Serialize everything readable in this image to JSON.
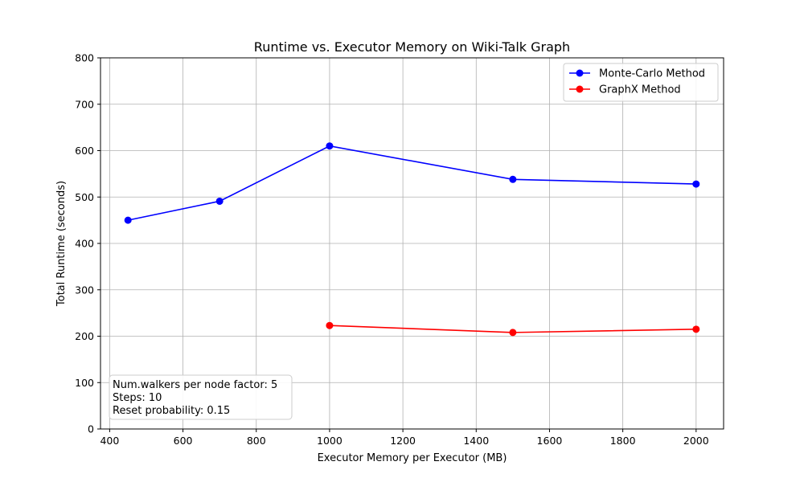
{
  "chart_data": {
    "type": "line",
    "title": "Runtime vs. Executor Memory on Wiki-Talk Graph",
    "xlabel": "Executor Memory per Executor (MB)",
    "ylabel": "Total Runtime (seconds)",
    "xlim": [
      375,
      2075
    ],
    "ylim": [
      0,
      800
    ],
    "xticks": [
      400,
      600,
      800,
      1000,
      1200,
      1400,
      1600,
      1800,
      2000
    ],
    "yticks": [
      0,
      100,
      200,
      300,
      400,
      500,
      600,
      700,
      800
    ],
    "grid": true,
    "legend_position": "top-right",
    "series": [
      {
        "name": "Monte-Carlo Method",
        "color": "#0000ff",
        "x": [
          450,
          700,
          1000,
          1500,
          2000
        ],
        "y": [
          450,
          491,
          610,
          538,
          528
        ]
      },
      {
        "name": "GraphX Method",
        "color": "#ff0000",
        "x": [
          1000,
          1500,
          2000
        ],
        "y": [
          223,
          208,
          215
        ]
      }
    ],
    "annotation": {
      "lines": [
        "Num.walkers per node factor: 5",
        "Steps: 10",
        "Reset probability: 0.15"
      ],
      "position": "bottom-left"
    }
  },
  "colors": {
    "grid": "#b0b0b0",
    "axes": "#000000",
    "legend_border": "#cccccc"
  }
}
